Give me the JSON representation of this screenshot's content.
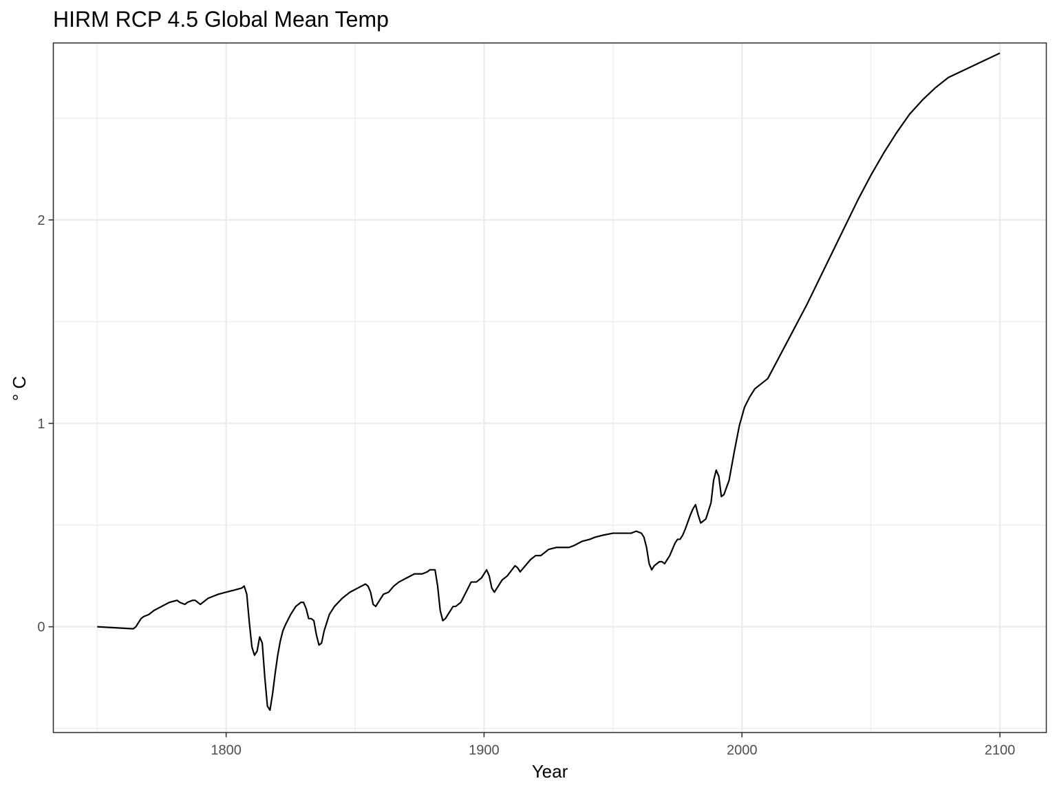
{
  "chart_data": {
    "type": "line",
    "title": "HIRM RCP 4.5 Global Mean Temp",
    "xlabel": "Year",
    "ylabel": "° C",
    "xlim": [
      1733,
      2118
    ],
    "ylim": [
      -0.52,
      2.87
    ],
    "x_ticks": [
      1800,
      1900,
      2000,
      2100
    ],
    "x_tick_labels": [
      "1800",
      "1900",
      "2000",
      "2100"
    ],
    "x_minor": [
      1750,
      1850,
      1950,
      2050
    ],
    "y_ticks": [
      0,
      1,
      2
    ],
    "y_tick_labels": [
      "0",
      "1",
      "2"
    ],
    "y_minor": [
      -0.5,
      0.5,
      1.5,
      2.5
    ],
    "grid": true,
    "legend": "none",
    "series": [
      {
        "x": [
          1750,
          1764,
          1765,
          1767,
          1768,
          1770,
          1772,
          1775,
          1778,
          1781,
          1782,
          1784,
          1785,
          1787,
          1788,
          1790,
          1791,
          1793,
          1795,
          1797,
          1800,
          1803,
          1806,
          1807,
          1808,
          1809,
          1810,
          1811,
          1812,
          1813,
          1814,
          1815,
          1816,
          1817,
          1818,
          1819,
          1820,
          1821,
          1822,
          1823,
          1825,
          1827,
          1829,
          1830,
          1831,
          1832,
          1833,
          1834,
          1835,
          1836,
          1837,
          1838,
          1840,
          1842,
          1845,
          1848,
          1851,
          1854,
          1855,
          1856,
          1857,
          1858,
          1859,
          1861,
          1863,
          1865,
          1867,
          1870,
          1873,
          1876,
          1878,
          1879,
          1881,
          1882,
          1883,
          1884,
          1885,
          1886,
          1888,
          1889,
          1891,
          1893,
          1895,
          1896,
          1897,
          1899,
          1901,
          1902,
          1903,
          1904,
          1905,
          1907,
          1909,
          1912,
          1913,
          1914,
          1916,
          1918,
          1920,
          1922,
          1925,
          1928,
          1930,
          1933,
          1935,
          1938,
          1941,
          1943,
          1946,
          1950,
          1954,
          1957,
          1959,
          1961,
          1962,
          1963,
          1964,
          1965,
          1966,
          1968,
          1969,
          1970,
          1971,
          1972,
          1974,
          1975,
          1976,
          1977,
          1978,
          1980,
          1981,
          1982,
          1983,
          1984,
          1986,
          1988,
          1989,
          1990,
          1991,
          1992,
          1993,
          1995,
          1997,
          1999,
          2001,
          2003,
          2005,
          2007,
          2010,
          2015,
          2020,
          2025,
          2030,
          2035,
          2040,
          2045,
          2050,
          2055,
          2060,
          2065,
          2070,
          2075,
          2080,
          2085,
          2090,
          2095,
          2100
        ],
        "y": [
          0.0,
          -0.01,
          0.0,
          0.04,
          0.05,
          0.06,
          0.08,
          0.1,
          0.12,
          0.13,
          0.12,
          0.11,
          0.12,
          0.13,
          0.13,
          0.11,
          0.12,
          0.14,
          0.15,
          0.16,
          0.17,
          0.18,
          0.19,
          0.2,
          0.16,
          0.02,
          -0.1,
          -0.14,
          -0.12,
          -0.05,
          -0.08,
          -0.25,
          -0.39,
          -0.41,
          -0.33,
          -0.23,
          -0.14,
          -0.07,
          -0.02,
          0.01,
          0.06,
          0.1,
          0.12,
          0.12,
          0.09,
          0.04,
          0.04,
          0.03,
          -0.04,
          -0.09,
          -0.08,
          -0.02,
          0.06,
          0.1,
          0.14,
          0.17,
          0.19,
          0.21,
          0.2,
          0.17,
          0.11,
          0.1,
          0.12,
          0.16,
          0.17,
          0.2,
          0.22,
          0.24,
          0.26,
          0.26,
          0.27,
          0.28,
          0.28,
          0.2,
          0.08,
          0.03,
          0.04,
          0.06,
          0.1,
          0.1,
          0.12,
          0.17,
          0.22,
          0.22,
          0.22,
          0.24,
          0.28,
          0.25,
          0.19,
          0.17,
          0.19,
          0.23,
          0.25,
          0.3,
          0.29,
          0.27,
          0.3,
          0.33,
          0.35,
          0.35,
          0.38,
          0.39,
          0.39,
          0.39,
          0.4,
          0.42,
          0.43,
          0.44,
          0.45,
          0.46,
          0.46,
          0.46,
          0.47,
          0.46,
          0.44,
          0.39,
          0.31,
          0.28,
          0.3,
          0.32,
          0.32,
          0.31,
          0.33,
          0.35,
          0.41,
          0.43,
          0.43,
          0.45,
          0.48,
          0.55,
          0.58,
          0.6,
          0.55,
          0.51,
          0.53,
          0.61,
          0.72,
          0.77,
          0.74,
          0.64,
          0.65,
          0.72,
          0.86,
          0.99,
          1.08,
          1.13,
          1.17,
          1.19,
          1.22,
          1.34,
          1.46,
          1.58,
          1.71,
          1.84,
          1.97,
          2.1,
          2.22,
          2.33,
          2.43,
          2.52,
          2.59,
          2.65,
          2.7,
          2.73,
          2.76,
          2.79,
          2.82
        ]
      }
    ]
  }
}
